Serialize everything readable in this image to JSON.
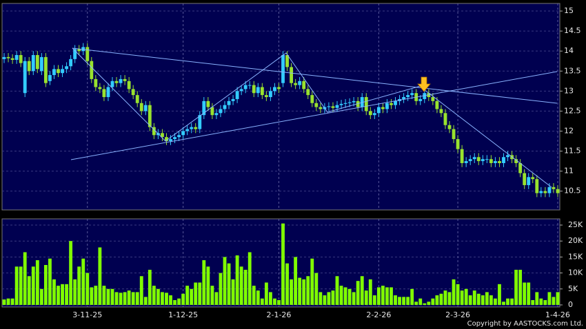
{
  "chart_data": {
    "type": "candlestick",
    "categories": [
      null,
      null,
      null,
      null,
      null,
      null,
      null,
      null,
      null,
      null,
      null,
      null,
      null,
      null,
      null,
      null,
      null,
      null,
      null,
      null,
      "3-11-25",
      null,
      null,
      null,
      null,
      null,
      null,
      null,
      null,
      null,
      null,
      null,
      null,
      null,
      null,
      null,
      null,
      null,
      null,
      null,
      null,
      null,
      null,
      "1-12-25",
      null,
      null,
      null,
      null,
      null,
      null,
      null,
      null,
      null,
      null,
      null,
      null,
      null,
      null,
      null,
      null,
      null,
      null,
      null,
      null,
      null,
      null,
      "2-1-26",
      null,
      null,
      null,
      null,
      null,
      null,
      null,
      null,
      null,
      null,
      null,
      null,
      null,
      null,
      null,
      null,
      null,
      null,
      null,
      null,
      null,
      null,
      null,
      "2-2-26",
      null,
      null,
      null,
      null,
      null,
      null,
      null,
      null,
      null,
      null,
      null,
      null,
      null,
      null,
      null,
      null,
      null,
      null,
      "2-3-26",
      null,
      null,
      null,
      null,
      null,
      null,
      null,
      null,
      null,
      null,
      null,
      null,
      null,
      null,
      null,
      null,
      null,
      null,
      null,
      null,
      null,
      null,
      null,
      "1-4-26"
    ],
    "open": [
      13.8,
      13.85,
      13.82,
      13.78,
      13.9,
      12.95,
      13.75,
      13.5,
      13.9,
      13.5,
      13.85,
      13.25,
      13.4,
      13.55,
      13.45,
      13.55,
      13.62,
      13.8,
      14.05,
      14.0,
      14.1,
      13.75,
      13.3,
      13.1,
      13.05,
      12.85,
      13.1,
      13.25,
      13.2,
      13.3,
      13.25,
      13.05,
      12.9,
      12.7,
      12.5,
      12.65,
      12.1,
      11.9,
      11.95,
      11.85,
      11.75,
      11.8,
      11.85,
      11.9,
      12.0,
      12.05,
      12.1,
      12.05,
      12.4,
      12.75,
      12.6,
      12.4,
      12.45,
      12.55,
      12.65,
      12.75,
      12.8,
      13.0,
      13.05,
      13.15,
      13.15,
      12.95,
      13.1,
      12.9,
      12.85,
      13.0,
      13.1,
      13.2,
      13.9,
      13.6,
      13.2,
      13.15,
      13.25,
      13.05,
      12.9,
      12.7,
      12.6,
      12.55,
      12.6,
      12.62,
      12.58,
      12.65,
      12.68,
      12.7,
      12.72,
      12.75,
      12.6,
      12.85,
      12.5,
      12.4,
      12.45,
      12.6,
      12.55,
      12.7,
      12.65,
      12.75,
      12.8,
      12.85,
      12.9,
      12.95,
      12.75,
      12.8,
      12.95,
      12.85,
      12.75,
      12.55,
      12.45,
      12.15,
      12.05,
      11.8,
      11.55,
      11.2,
      11.25,
      11.3,
      11.35,
      11.25,
      11.3,
      11.3,
      11.2,
      11.25,
      11.2,
      11.35,
      11.4,
      11.3,
      11.2,
      10.95,
      10.65,
      10.85,
      10.8,
      10.45,
      10.5,
      10.45,
      10.6,
      10.55
    ],
    "high": [
      13.95,
      13.95,
      13.92,
      14.0,
      14.0,
      13.85,
      13.85,
      14.0,
      14.0,
      13.95,
      13.95,
      13.5,
      13.65,
      13.65,
      13.65,
      13.72,
      13.9,
      14.15,
      14.15,
      14.2,
      14.2,
      13.85,
      13.4,
      13.2,
      13.15,
      13.2,
      13.35,
      13.35,
      13.4,
      13.4,
      13.35,
      13.15,
      13.0,
      12.8,
      12.75,
      12.75,
      12.2,
      12.05,
      12.05,
      11.95,
      11.9,
      11.95,
      12.0,
      12.1,
      12.15,
      12.2,
      12.2,
      12.5,
      12.85,
      12.85,
      12.7,
      12.55,
      12.65,
      12.75,
      12.85,
      12.9,
      13.1,
      13.15,
      13.25,
      13.25,
      13.25,
      13.2,
      13.2,
      13.0,
      13.1,
      13.2,
      13.2,
      14.0,
      14.0,
      13.7,
      13.3,
      13.35,
      13.35,
      13.15,
      13.0,
      12.8,
      12.7,
      12.7,
      12.72,
      12.72,
      12.75,
      12.78,
      12.8,
      12.82,
      12.85,
      12.85,
      12.95,
      12.95,
      12.6,
      12.55,
      12.7,
      12.7,
      12.8,
      12.8,
      12.85,
      12.9,
      12.95,
      13.0,
      13.05,
      13.05,
      12.9,
      13.05,
      13.05,
      12.95,
      12.85,
      12.65,
      12.55,
      12.25,
      12.15,
      11.9,
      11.65,
      11.35,
      11.4,
      11.45,
      11.45,
      11.4,
      11.4,
      11.4,
      11.35,
      11.35,
      11.45,
      11.5,
      11.5,
      11.4,
      11.3,
      11.05,
      10.95,
      10.95,
      10.9,
      10.6,
      10.6,
      10.7,
      10.7,
      10.65
    ],
    "low": [
      13.7,
      13.72,
      13.68,
      13.68,
      13.6,
      12.85,
      13.4,
      13.4,
      13.45,
      13.4,
      13.1,
      13.15,
      13.3,
      13.35,
      13.35,
      13.45,
      13.52,
      13.7,
      13.9,
      13.9,
      13.65,
      13.2,
      13.0,
      12.95,
      12.75,
      12.75,
      13.0,
      13.1,
      13.1,
      13.15,
      12.95,
      12.8,
      12.6,
      12.4,
      12.4,
      12.0,
      11.8,
      11.8,
      11.75,
      11.65,
      11.65,
      11.7,
      11.75,
      11.8,
      11.9,
      11.95,
      11.95,
      11.95,
      12.3,
      12.5,
      12.3,
      12.3,
      12.35,
      12.45,
      12.55,
      12.65,
      12.7,
      12.9,
      12.95,
      13.05,
      12.85,
      12.85,
      12.8,
      12.75,
      12.75,
      12.9,
      12.95,
      13.1,
      13.5,
      13.1,
      13.05,
      13.05,
      12.95,
      12.8,
      12.6,
      12.5,
      12.45,
      12.45,
      12.5,
      12.48,
      12.48,
      12.55,
      12.58,
      12.6,
      12.62,
      12.5,
      12.5,
      12.4,
      12.3,
      12.3,
      12.35,
      12.45,
      12.45,
      12.55,
      12.55,
      12.65,
      12.7,
      12.75,
      12.8,
      12.65,
      12.65,
      12.7,
      12.75,
      12.65,
      12.45,
      12.35,
      12.05,
      11.95,
      11.7,
      11.45,
      11.1,
      11.1,
      11.15,
      11.2,
      11.15,
      11.15,
      11.2,
      11.1,
      11.1,
      11.1,
      11.1,
      11.25,
      11.2,
      11.1,
      10.85,
      10.55,
      10.55,
      10.7,
      10.35,
      10.35,
      10.35,
      10.35,
      10.45,
      10.35
    ],
    "close": [
      13.85,
      13.82,
      13.78,
      13.9,
      13.7,
      13.75,
      13.5,
      13.9,
      13.55,
      13.85,
      13.2,
      13.4,
      13.55,
      13.45,
      13.55,
      13.62,
      13.8,
      14.05,
      14.0,
      14.1,
      13.75,
      13.3,
      13.1,
      13.05,
      12.85,
      13.1,
      13.25,
      13.2,
      13.3,
      13.25,
      13.05,
      12.9,
      12.7,
      12.5,
      12.65,
      12.1,
      11.9,
      11.95,
      11.85,
      11.75,
      11.8,
      11.85,
      11.9,
      12.0,
      12.05,
      12.1,
      12.05,
      12.4,
      12.75,
      12.6,
      12.4,
      12.45,
      12.55,
      12.65,
      12.75,
      12.8,
      13.0,
      13.05,
      13.15,
      13.15,
      12.95,
      13.1,
      12.9,
      12.85,
      13.0,
      13.1,
      13.05,
      13.9,
      13.6,
      13.2,
      13.15,
      13.25,
      13.05,
      12.9,
      12.7,
      12.6,
      12.55,
      12.6,
      12.62,
      12.58,
      12.65,
      12.68,
      12.7,
      12.72,
      12.75,
      12.6,
      12.85,
      12.5,
      12.4,
      12.45,
      12.6,
      12.55,
      12.7,
      12.65,
      12.75,
      12.8,
      12.85,
      12.9,
      12.95,
      12.75,
      12.8,
      12.95,
      12.85,
      12.75,
      12.55,
      12.45,
      12.15,
      12.05,
      11.8,
      11.55,
      11.2,
      11.25,
      11.3,
      11.35,
      11.25,
      11.3,
      11.3,
      11.2,
      11.25,
      11.2,
      11.35,
      11.4,
      11.3,
      11.2,
      10.95,
      10.65,
      10.85,
      10.8,
      10.45,
      10.5,
      10.45,
      10.6,
      10.55,
      10.45
    ],
    "up_color": "#33ccff",
    "down_color": "#99e22e",
    "ylim": [
      10.03,
      15.19
    ],
    "yticks": [
      10.5,
      11,
      11.5,
      12,
      12.5,
      13,
      13.5,
      14,
      14.5,
      15
    ],
    "grid": true,
    "volume": {
      "values": [
        1700,
        2000,
        2000,
        12000,
        12000,
        16500,
        9000,
        12000,
        14000,
        5000,
        12500,
        14500,
        8000,
        6000,
        6500,
        6500,
        20000,
        8000,
        12000,
        14500,
        10000,
        5500,
        6000,
        18000,
        6000,
        5000,
        5000,
        4000,
        3800,
        4000,
        4500,
        4000,
        4000,
        9000,
        2500,
        11000,
        6000,
        5000,
        4000,
        3800,
        3000,
        1500,
        2000,
        3500,
        6000,
        5000,
        7000,
        7000,
        14000,
        12000,
        6000,
        4000,
        10000,
        15000,
        13000,
        8000,
        15500,
        12000,
        11000,
        16500,
        6000,
        4500,
        2000,
        7000,
        4000,
        2000,
        1500,
        25500,
        13000,
        8000,
        15000,
        8500,
        8000,
        9000,
        14500,
        10000,
        4000,
        3000,
        4000,
        4500,
        9000,
        6000,
        5500,
        5000,
        4000,
        7500,
        9000,
        4500,
        8000,
        3000,
        5500,
        6000,
        5500,
        5500,
        3000,
        2500,
        2500,
        2500,
        5000,
        1000,
        2000,
        500,
        1000,
        2000,
        3000,
        3500,
        4500,
        4000,
        8000,
        6500,
        4500,
        5000,
        3000,
        4500,
        3500,
        3000,
        4000,
        3000,
        2000,
        6500,
        1000,
        2000,
        2000,
        11000,
        11000,
        7000,
        7000,
        1500,
        4000,
        2000,
        1500,
        4000,
        2500,
        4000
      ],
      "color": "#80ff00",
      "ylim": [
        -650,
        26940
      ],
      "yticks": [
        0,
        {
          "value": 5000,
          "label": "5K"
        },
        {
          "value": 10000,
          "label": "10K"
        },
        {
          "value": 15000,
          "label": "15K"
        },
        {
          "value": 20000,
          "label": "20K"
        },
        {
          "value": 25000,
          "label": "25K"
        }
      ]
    },
    "copyright": "Copyright by AASTOCKS.com Ltd."
  }
}
